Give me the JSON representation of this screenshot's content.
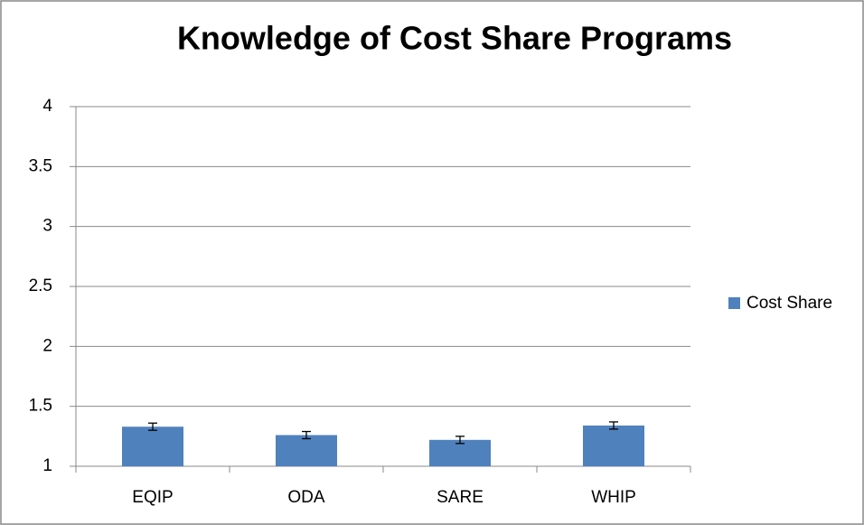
{
  "chart_data": {
    "type": "bar",
    "title": "Knowledge of Cost Share Programs",
    "categories": [
      "EQIP",
      "ODA",
      "SARE",
      "WHIP"
    ],
    "series": [
      {
        "name": "Cost Share",
        "color": "#4f81bd",
        "values": [
          1.33,
          1.26,
          1.22,
          1.34
        ],
        "errors": [
          0.03,
          0.03,
          0.03,
          0.03
        ]
      }
    ],
    "ylim": [
      1,
      4
    ],
    "yticks": [
      1,
      1.5,
      2,
      2.5,
      3,
      3.5,
      4
    ],
    "grid": true,
    "legend": "right"
  }
}
